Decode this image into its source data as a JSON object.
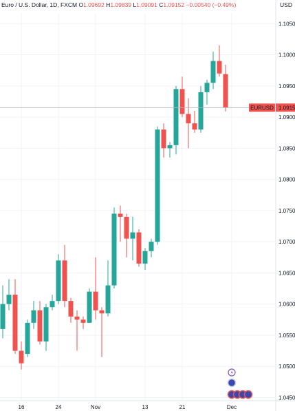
{
  "header": {
    "symbol_description": "Euro / U.S. Dollar, 1D, FXCM",
    "open_key": "O",
    "open": "1.09692",
    "high_key": "H",
    "high": "1.09839",
    "low_key": "L",
    "low": "1.09091",
    "close_key": "C",
    "close": "1.09152",
    "change": "−0.00540 (−0.49%)"
  },
  "currency_label": "USD",
  "price_label": {
    "symbol": "EURUSD",
    "value": "1.09152"
  },
  "colors": {
    "up": "#26a69a",
    "down": "#ef5350",
    "grid": "#f0f3fa",
    "text": "#131722"
  },
  "chart_data": {
    "type": "candlestick",
    "y_ticks": [
      "1.10500",
      "1.10000",
      "1.09500",
      "1.09000",
      "1.08500",
      "1.08000",
      "1.07500",
      "1.07000",
      "1.06500",
      "1.06000",
      "1.05500",
      "1.05000",
      "1.04500"
    ],
    "y_range": [
      1.0445,
      1.1068
    ],
    "x_labels": [
      {
        "label": "16",
        "index": 3
      },
      {
        "label": "24",
        "index": 9
      },
      {
        "label": "Nov",
        "index": 15
      },
      {
        "label": "13",
        "index": 23
      },
      {
        "label": "21",
        "index": 29
      },
      {
        "label": "Dec",
        "index": 37
      }
    ],
    "candles": [
      {
        "o": 1.056,
        "h": 1.063,
        "l": 1.0545,
        "c": 1.06
      },
      {
        "o": 1.06,
        "h": 1.064,
        "l": 1.059,
        "c": 1.0615
      },
      {
        "o": 1.0615,
        "h": 1.064,
        "l": 1.052,
        "c": 1.0525
      },
      {
        "o": 1.0525,
        "h": 1.054,
        "l": 1.0495,
        "c": 1.0505
      },
      {
        "o": 1.052,
        "h": 1.0575,
        "l": 1.0515,
        "c": 1.057
      },
      {
        "o": 1.057,
        "h": 1.0605,
        "l": 1.056,
        "c": 1.059
      },
      {
        "o": 1.059,
        "h": 1.0605,
        "l": 1.0535,
        "c": 1.054
      },
      {
        "o": 1.054,
        "h": 1.06,
        "l": 1.0525,
        "c": 1.0595
      },
      {
        "o": 1.0595,
        "h": 1.0615,
        "l": 1.059,
        "c": 1.0605
      },
      {
        "o": 1.0605,
        "h": 1.068,
        "l": 1.06,
        "c": 1.067
      },
      {
        "o": 1.067,
        "h": 1.0695,
        "l": 1.0595,
        "c": 1.0605
      },
      {
        "o": 1.0605,
        "h": 1.061,
        "l": 1.057,
        "c": 1.058
      },
      {
        "o": 1.058,
        "h": 1.059,
        "l": 1.0525,
        "c": 1.0575
      },
      {
        "o": 1.0575,
        "h": 1.058,
        "l": 1.056,
        "c": 1.057
      },
      {
        "o": 1.057,
        "h": 1.0625,
        "l": 1.057,
        "c": 1.062
      },
      {
        "o": 1.062,
        "h": 1.0675,
        "l": 1.0575,
        "c": 1.059
      },
      {
        "o": 1.059,
        "h": 1.0595,
        "l": 1.0515,
        "c": 1.0585
      },
      {
        "o": 1.0585,
        "h": 1.067,
        "l": 1.058,
        "c": 1.063
      },
      {
        "o": 1.063,
        "h": 1.0755,
        "l": 1.0625,
        "c": 1.0745
      },
      {
        "o": 1.0745,
        "h": 1.0758,
        "l": 1.07,
        "c": 1.074
      },
      {
        "o": 1.074,
        "h": 1.0745,
        "l": 1.0675,
        "c": 1.0705
      },
      {
        "o": 1.0705,
        "h": 1.074,
        "l": 1.067,
        "c": 1.0715
      },
      {
        "o": 1.0715,
        "h": 1.072,
        "l": 1.066,
        "c": 1.0665
      },
      {
        "o": 1.0665,
        "h": 1.069,
        "l": 1.0655,
        "c": 1.0685
      },
      {
        "o": 1.0685,
        "h": 1.0705,
        "l": 1.0675,
        "c": 1.07
      },
      {
        "o": 1.07,
        "h": 1.0885,
        "l": 1.0695,
        "c": 1.088
      },
      {
        "o": 1.088,
        "h": 1.089,
        "l": 1.0835,
        "c": 1.085
      },
      {
        "o": 1.085,
        "h": 1.086,
        "l": 1.0835,
        "c": 1.0855
      },
      {
        "o": 1.0855,
        "h": 1.095,
        "l": 1.084,
        "c": 1.0945
      },
      {
        "o": 1.0945,
        "h": 1.0965,
        "l": 1.09,
        "c": 1.0905
      },
      {
        "o": 1.0905,
        "h": 1.093,
        "l": 1.085,
        "c": 1.089
      },
      {
        "o": 1.089,
        "h": 1.091,
        "l": 1.0875,
        "c": 1.088
      },
      {
        "o": 1.088,
        "h": 1.095,
        "l": 1.0875,
        "c": 1.094
      },
      {
        "o": 1.094,
        "h": 1.096,
        "l": 1.092,
        "c": 1.0955
      },
      {
        "o": 1.0955,
        "h": 1.1005,
        "l": 1.0945,
        "c": 1.099
      },
      {
        "o": 1.099,
        "h": 1.1015,
        "l": 1.0965,
        "c": 1.097
      },
      {
        "o": 1.0969,
        "h": 1.0984,
        "l": 1.0909,
        "c": 1.0915
      }
    ]
  }
}
